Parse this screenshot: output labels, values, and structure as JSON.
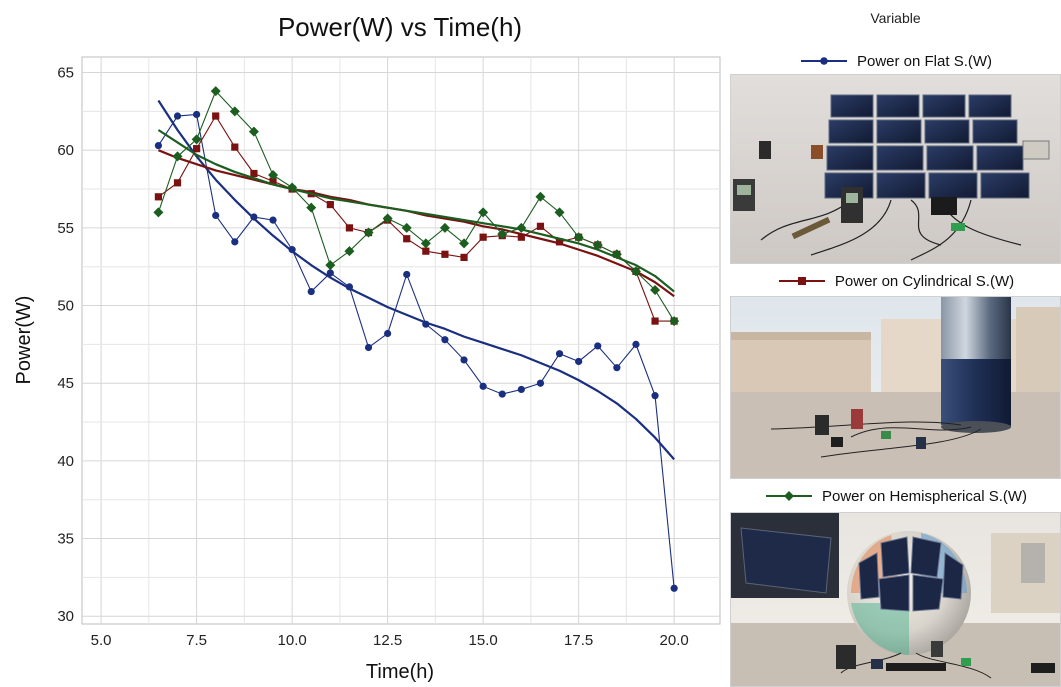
{
  "chart_data": {
    "type": "line",
    "title": "Power(W) vs Time(h)",
    "xlabel": "Time(h)",
    "ylabel": "Power(W)",
    "xlim": [
      4.5,
      21.2
    ],
    "ylim": [
      29.5,
      66
    ],
    "xticks": [
      "5.0",
      "7.5",
      "10.0",
      "12.5",
      "15.0",
      "17.5",
      "20.0"
    ],
    "yticks": [
      "30",
      "35",
      "40",
      "45",
      "50",
      "55",
      "60",
      "65"
    ],
    "grid": true,
    "legend_title": "Variable",
    "legend_position": "right",
    "x": [
      6.5,
      7,
      7.5,
      8,
      8.5,
      9,
      9.5,
      10,
      10.5,
      11,
      11.5,
      12,
      12.5,
      13,
      13.5,
      14,
      14.5,
      15,
      15.5,
      16,
      16.5,
      17,
      17.5,
      18,
      18.5,
      19,
      19.5,
      20
    ],
    "series": [
      {
        "name": "Power on Flat S.(W)",
        "color": "#1a2f80",
        "marker": "circle",
        "values": [
          60.3,
          62.2,
          62.3,
          55.8,
          54.1,
          55.7,
          55.5,
          53.6,
          50.9,
          52.1,
          51.2,
          47.3,
          48.2,
          52.0,
          48.8,
          47.8,
          46.5,
          44.8,
          44.3,
          44.6,
          45.0,
          46.9,
          46.4,
          47.4,
          46.0,
          47.5,
          44.2,
          31.8
        ],
        "trend": [
          63.2,
          61.3,
          59.6,
          58.1,
          56.8,
          55.6,
          54.5,
          53.5,
          52.6,
          51.8,
          51.1,
          50.5,
          49.9,
          49.4,
          48.9,
          48.5,
          48.0,
          47.6,
          47.2,
          46.8,
          46.3,
          45.8,
          45.2,
          44.5,
          43.7,
          42.7,
          41.5,
          40.1
        ]
      },
      {
        "name": "Power on Cylindrical S.(W)",
        "color": "#7a1212",
        "marker": "square",
        "values": [
          57.0,
          57.9,
          60.1,
          62.2,
          60.2,
          58.5,
          58.0,
          57.5,
          57.2,
          56.5,
          55.0,
          54.7,
          55.5,
          54.3,
          53.5,
          53.3,
          53.1,
          54.4,
          54.5,
          54.4,
          55.1,
          54.1,
          54.4,
          53.9,
          53.3,
          52.2,
          49.0,
          49.0
        ],
        "trend": [
          60.0,
          59.5,
          59.1,
          58.7,
          58.4,
          58.1,
          57.8,
          57.5,
          57.3,
          57.0,
          56.8,
          56.5,
          56.3,
          56.1,
          55.8,
          55.6,
          55.4,
          55.1,
          54.9,
          54.6,
          54.3,
          54.0,
          53.6,
          53.2,
          52.7,
          52.2,
          51.5,
          50.6
        ]
      },
      {
        "name": "Power on Hemispherical S.(W)",
        "color": "#1b5e20",
        "marker": "diamond",
        "values": [
          56.0,
          59.6,
          60.7,
          63.8,
          62.5,
          61.2,
          58.4,
          57.6,
          56.3,
          52.6,
          53.5,
          54.7,
          55.6,
          55.0,
          54.0,
          55.0,
          54.0,
          56.0,
          54.6,
          55.0,
          57.0,
          56.0,
          54.4,
          53.9,
          53.3,
          52.2,
          51.0,
          49.0
        ],
        "trend": [
          61.3,
          60.5,
          59.7,
          59.1,
          58.6,
          58.2,
          57.8,
          57.5,
          57.2,
          56.9,
          56.7,
          56.5,
          56.3,
          56.1,
          55.9,
          55.7,
          55.5,
          55.3,
          55.1,
          54.9,
          54.6,
          54.3,
          54.0,
          53.6,
          53.1,
          52.6,
          51.9,
          50.9
        ]
      }
    ]
  },
  "photos": [
    {
      "icon": "flat-solar-panel-photo"
    },
    {
      "icon": "cylindrical-solar-panel-photo"
    },
    {
      "icon": "hemispherical-solar-panel-photo"
    }
  ]
}
